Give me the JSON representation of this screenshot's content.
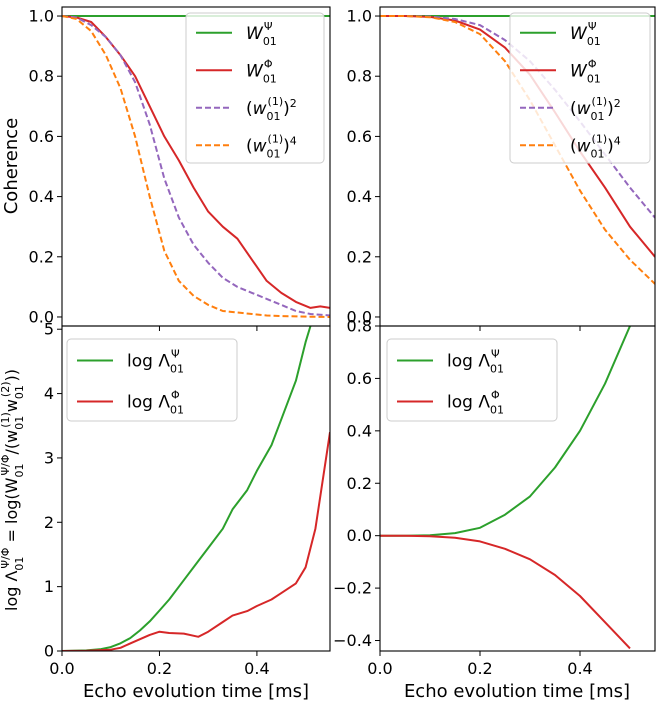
{
  "colors": {
    "green": "#2ca02c",
    "red": "#d62728",
    "purple": "#9467bd",
    "orange": "#ff7f0e"
  },
  "xlabel": "Echo evolution time [ms]",
  "chart_data": [
    {
      "type": "line",
      "panel": "top-left",
      "xlim": [
        0,
        0.55
      ],
      "ylim": [
        -0.03,
        1.03
      ],
      "xticks": [
        0.0,
        0.2,
        0.4
      ],
      "xticklabels_shown": false,
      "yticks": [
        0.0,
        0.2,
        0.4,
        0.6,
        0.8,
        1.0
      ],
      "yticklabels": [
        "0.0",
        "0.2",
        "0.4",
        "0.6",
        "0.8",
        "1.0"
      ],
      "ylabel": "Coherence",
      "xlabel": "",
      "legend": "top-right",
      "series": [
        {
          "name": "W01Ψ",
          "color": "#2ca02c",
          "style": "solid",
          "x": [
            0,
            0.55
          ],
          "y": [
            1.0,
            1.0
          ]
        },
        {
          "name": "W01Φ",
          "color": "#d62728",
          "style": "solid",
          "x": [
            0,
            0.03,
            0.06,
            0.09,
            0.12,
            0.15,
            0.18,
            0.21,
            0.24,
            0.27,
            0.3,
            0.33,
            0.36,
            0.39,
            0.42,
            0.45,
            0.48,
            0.51,
            0.53,
            0.55
          ],
          "y": [
            1.0,
            0.995,
            0.98,
            0.93,
            0.87,
            0.8,
            0.7,
            0.6,
            0.52,
            0.43,
            0.35,
            0.3,
            0.26,
            0.19,
            0.12,
            0.08,
            0.05,
            0.03,
            0.035,
            0.03
          ]
        },
        {
          "name": "(w01(1))²",
          "color": "#9467bd",
          "style": "dashed",
          "x": [
            0,
            0.03,
            0.06,
            0.09,
            0.12,
            0.15,
            0.18,
            0.21,
            0.24,
            0.27,
            0.3,
            0.33,
            0.36,
            0.39,
            0.42,
            0.45,
            0.48,
            0.51,
            0.55
          ],
          "y": [
            1.0,
            0.995,
            0.97,
            0.93,
            0.87,
            0.78,
            0.64,
            0.46,
            0.33,
            0.24,
            0.18,
            0.13,
            0.1,
            0.08,
            0.06,
            0.04,
            0.02,
            0.01,
            0.005
          ]
        },
        {
          "name": "(w01(1))⁴",
          "color": "#ff7f0e",
          "style": "dashed",
          "x": [
            0,
            0.03,
            0.06,
            0.09,
            0.12,
            0.15,
            0.18,
            0.21,
            0.24,
            0.27,
            0.3,
            0.33,
            0.36,
            0.39,
            0.42,
            0.45,
            0.48,
            0.51,
            0.55
          ],
          "y": [
            1.0,
            0.99,
            0.95,
            0.87,
            0.76,
            0.6,
            0.4,
            0.22,
            0.12,
            0.07,
            0.04,
            0.02,
            0.015,
            0.01,
            0.005,
            0.003,
            0.002,
            0.001,
            0.0
          ]
        }
      ]
    },
    {
      "type": "line",
      "panel": "top-right",
      "xlim": [
        0,
        0.55
      ],
      "ylim": [
        -0.03,
        1.03
      ],
      "xticks": [
        0.0,
        0.2,
        0.4
      ],
      "xticklabels_shown": false,
      "yticks": [
        0.0,
        0.2,
        0.4,
        0.6,
        0.8,
        1.0
      ],
      "yticklabels": [
        "0.0",
        "0.2",
        "0.4",
        "0.6",
        "0.8",
        "1.0"
      ],
      "ylabel": "",
      "xlabel": "",
      "legend": "top-right",
      "series": [
        {
          "name": "W01Ψ",
          "color": "#2ca02c",
          "style": "solid",
          "x": [
            0,
            0.55
          ],
          "y": [
            1.0,
            1.0
          ]
        },
        {
          "name": "W01Φ",
          "color": "#d62728",
          "style": "solid",
          "x": [
            0,
            0.05,
            0.1,
            0.15,
            0.2,
            0.25,
            0.3,
            0.35,
            0.4,
            0.45,
            0.5,
            0.55
          ],
          "y": [
            1.0,
            1.0,
            0.997,
            0.985,
            0.955,
            0.895,
            0.805,
            0.68,
            0.55,
            0.43,
            0.3,
            0.2
          ]
        },
        {
          "name": "(w01(1))²",
          "color": "#9467bd",
          "style": "dashed",
          "x": [
            0,
            0.05,
            0.1,
            0.15,
            0.2,
            0.25,
            0.3,
            0.35,
            0.4,
            0.45,
            0.5,
            0.55
          ],
          "y": [
            1.0,
            1.0,
            0.998,
            0.99,
            0.97,
            0.92,
            0.85,
            0.755,
            0.65,
            0.54,
            0.43,
            0.33
          ]
        },
        {
          "name": "(w01(1))⁴",
          "color": "#ff7f0e",
          "style": "dashed",
          "x": [
            0,
            0.05,
            0.1,
            0.15,
            0.2,
            0.25,
            0.3,
            0.35,
            0.4,
            0.45,
            0.5,
            0.55
          ],
          "y": [
            1.0,
            1.0,
            0.996,
            0.98,
            0.94,
            0.85,
            0.72,
            0.57,
            0.42,
            0.29,
            0.19,
            0.11
          ]
        }
      ]
    },
    {
      "type": "line",
      "panel": "bottom-left",
      "xlim": [
        0,
        0.55
      ],
      "ylim": [
        0,
        5.05
      ],
      "xticks": [
        0.0,
        0.2,
        0.4
      ],
      "xticklabels": [
        "0.0",
        "0.2",
        "0.4"
      ],
      "yticks": [
        0,
        1,
        2,
        3,
        4,
        5
      ],
      "yticklabels": [
        "0",
        "1",
        "2",
        "3",
        "4",
        "5"
      ],
      "ylabel": "log Λ01Ψ/Φ = log(W01Ψ/Φ/(w01(1)w01(2)))",
      "xlabel": "Echo evolution time [ms]",
      "legend": "top-left",
      "series": [
        {
          "name": "log Λ01Ψ",
          "color": "#2ca02c",
          "style": "solid",
          "x": [
            0,
            0.05,
            0.08,
            0.1,
            0.12,
            0.14,
            0.16,
            0.18,
            0.2,
            0.22,
            0.25,
            0.28,
            0.3,
            0.33,
            0.35,
            0.38,
            0.4,
            0.43,
            0.45,
            0.48,
            0.5,
            0.51
          ],
          "y": [
            0,
            0.01,
            0.03,
            0.06,
            0.12,
            0.2,
            0.32,
            0.46,
            0.63,
            0.8,
            1.1,
            1.4,
            1.6,
            1.9,
            2.2,
            2.5,
            2.8,
            3.2,
            3.6,
            4.2,
            4.8,
            5.05
          ]
        },
        {
          "name": "log Λ01Φ",
          "color": "#d62728",
          "style": "solid",
          "x": [
            0,
            0.05,
            0.1,
            0.12,
            0.15,
            0.18,
            0.2,
            0.22,
            0.25,
            0.28,
            0.3,
            0.33,
            0.35,
            0.38,
            0.4,
            0.43,
            0.45,
            0.48,
            0.5,
            0.52,
            0.55
          ],
          "y": [
            0,
            0.005,
            0.02,
            0.05,
            0.15,
            0.25,
            0.3,
            0.28,
            0.27,
            0.22,
            0.3,
            0.45,
            0.55,
            0.62,
            0.7,
            0.8,
            0.9,
            1.05,
            1.3,
            1.9,
            3.4
          ]
        }
      ]
    },
    {
      "type": "line",
      "panel": "bottom-right",
      "xlim": [
        0,
        0.55
      ],
      "ylim": [
        -0.44,
        0.8
      ],
      "xticks": [
        0.0,
        0.2,
        0.4
      ],
      "xticklabels": [
        "0.0",
        "0.2",
        "0.4"
      ],
      "yticks": [
        -0.4,
        -0.2,
        0.0,
        0.2,
        0.4,
        0.6,
        0.8
      ],
      "yticklabels": [
        "−0.4",
        "−0.2",
        "0.0",
        "0.2",
        "0.4",
        "0.6",
        "0.8"
      ],
      "ylabel": "",
      "xlabel": "Echo evolution time [ms]",
      "legend": "top-left",
      "series": [
        {
          "name": "log Λ01Ψ",
          "color": "#2ca02c",
          "style": "solid",
          "x": [
            0,
            0.05,
            0.1,
            0.15,
            0.2,
            0.25,
            0.3,
            0.35,
            0.4,
            0.45,
            0.5
          ],
          "y": [
            0,
            0,
            0.002,
            0.01,
            0.03,
            0.08,
            0.15,
            0.26,
            0.4,
            0.58,
            0.8
          ]
        },
        {
          "name": "log Λ01Φ",
          "color": "#d62728",
          "style": "solid",
          "x": [
            0,
            0.05,
            0.1,
            0.15,
            0.2,
            0.25,
            0.3,
            0.35,
            0.4,
            0.45,
            0.5
          ],
          "y": [
            0,
            0,
            -0.002,
            -0.008,
            -0.022,
            -0.05,
            -0.09,
            -0.15,
            -0.23,
            -0.33,
            -0.43
          ]
        }
      ]
    }
  ]
}
